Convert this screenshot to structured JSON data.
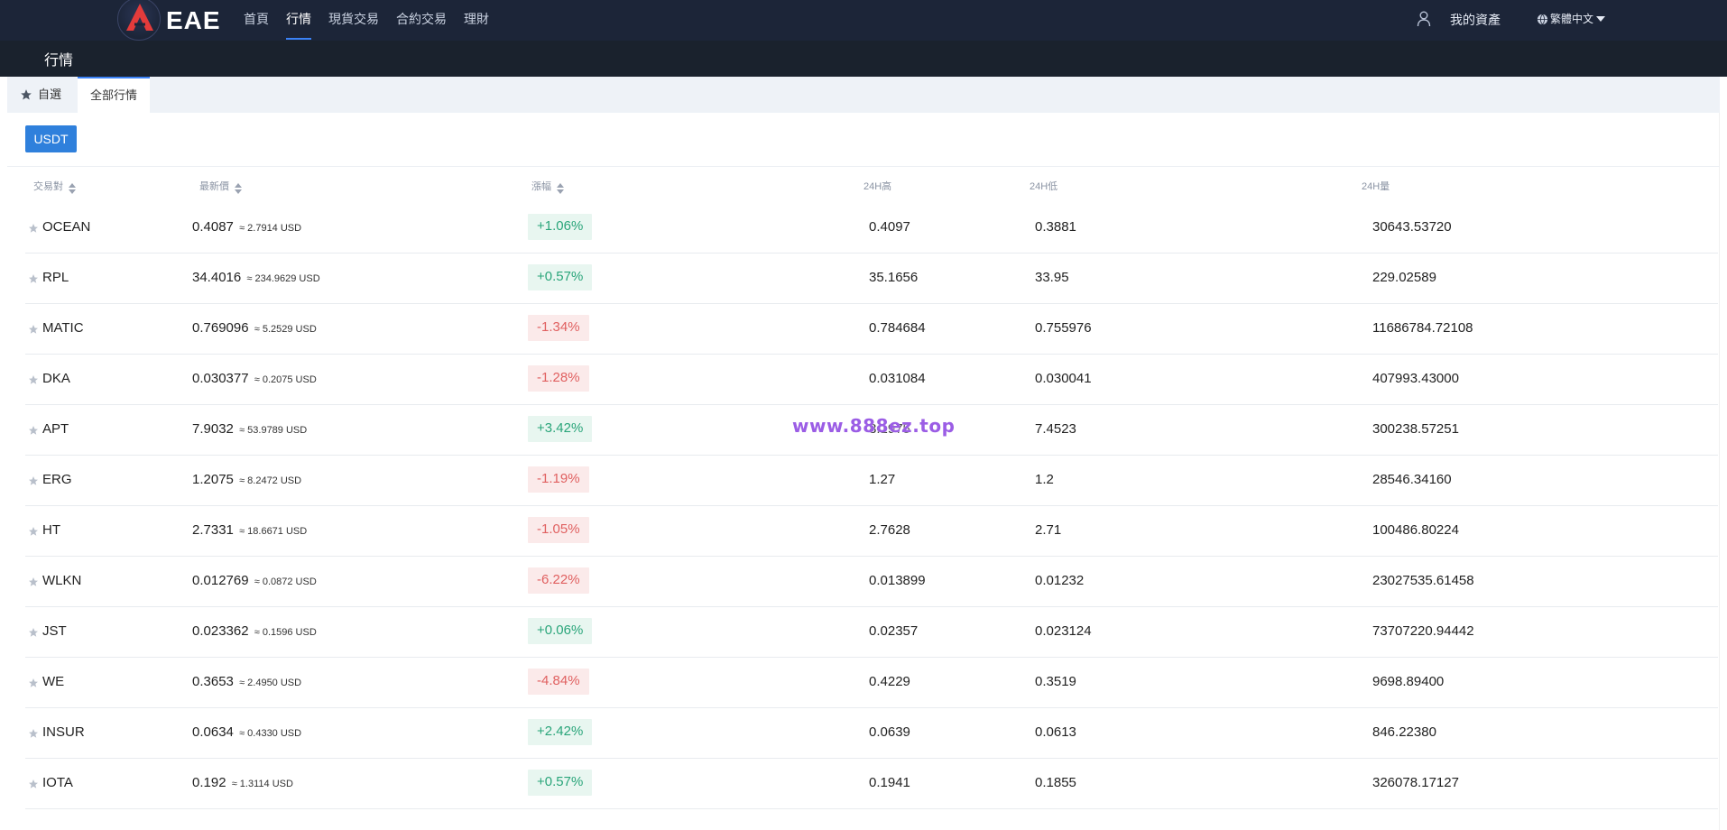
{
  "brand": {
    "name": "EAE"
  },
  "nav": {
    "items": [
      {
        "label": "首頁",
        "active": false
      },
      {
        "label": "行情",
        "active": true
      },
      {
        "label": "現貨交易",
        "active": false
      },
      {
        "label": "合約交易",
        "active": false
      },
      {
        "label": "理財",
        "active": false
      }
    ],
    "assets_label": "我的資產",
    "language": "繁體中文"
  },
  "subbar": {
    "title": "行情"
  },
  "tabs": {
    "favorites": "自選",
    "all": "全部行情",
    "active": "all"
  },
  "quote_currency": "USDT",
  "table": {
    "headers": {
      "pair": "交易對",
      "price": "最新價",
      "change": "漲幅",
      "high": "24H高",
      "low": "24H低",
      "volume": "24H量"
    },
    "rows": [
      {
        "pair": "OCEAN",
        "price": "0.4087",
        "usd": "≈ 2.7914 USD",
        "change": "+1.06%",
        "dir": "up",
        "high": "0.4097",
        "low": "0.3881",
        "volume": "30643.53720"
      },
      {
        "pair": "RPL",
        "price": "34.4016",
        "usd": "≈ 234.9629 USD",
        "change": "+0.57%",
        "dir": "up",
        "high": "35.1656",
        "low": "33.95",
        "volume": "229.02589"
      },
      {
        "pair": "MATIC",
        "price": "0.769096",
        "usd": "≈ 5.2529 USD",
        "change": "-1.34%",
        "dir": "down",
        "high": "0.784684",
        "low": "0.755976",
        "volume": "11686784.72108"
      },
      {
        "pair": "DKA",
        "price": "0.030377",
        "usd": "≈ 0.2075 USD",
        "change": "-1.28%",
        "dir": "down",
        "high": "0.031084",
        "low": "0.030041",
        "volume": "407993.43000"
      },
      {
        "pair": "APT",
        "price": "7.9032",
        "usd": "≈ 53.9789 USD",
        "change": "+3.42%",
        "dir": "up",
        "high": "8.1975",
        "low": "7.4523",
        "volume": "300238.57251"
      },
      {
        "pair": "ERG",
        "price": "1.2075",
        "usd": "≈ 8.2472 USD",
        "change": "-1.19%",
        "dir": "down",
        "high": "1.27",
        "low": "1.2",
        "volume": "28546.34160"
      },
      {
        "pair": "HT",
        "price": "2.7331",
        "usd": "≈ 18.6671 USD",
        "change": "-1.05%",
        "dir": "down",
        "high": "2.7628",
        "low": "2.71",
        "volume": "100486.80224"
      },
      {
        "pair": "WLKN",
        "price": "0.012769",
        "usd": "≈ 0.0872 USD",
        "change": "-6.22%",
        "dir": "down",
        "high": "0.013899",
        "low": "0.01232",
        "volume": "23027535.61458"
      },
      {
        "pair": "JST",
        "price": "0.023362",
        "usd": "≈ 0.1596 USD",
        "change": "+0.06%",
        "dir": "up",
        "high": "0.02357",
        "low": "0.023124",
        "volume": "73707220.94442"
      },
      {
        "pair": "WE",
        "price": "0.3653",
        "usd": "≈ 2.4950 USD",
        "change": "-4.84%",
        "dir": "down",
        "high": "0.4229",
        "low": "0.3519",
        "volume": "9698.89400"
      },
      {
        "pair": "INSUR",
        "price": "0.0634",
        "usd": "≈ 0.4330 USD",
        "change": "+2.42%",
        "dir": "up",
        "high": "0.0639",
        "low": "0.0613",
        "volume": "846.22380"
      },
      {
        "pair": "IOTA",
        "price": "0.192",
        "usd": "≈ 1.3114 USD",
        "change": "+0.57%",
        "dir": "up",
        "high": "0.1941",
        "low": "0.1855",
        "volume": "326078.17127"
      }
    ]
  },
  "watermark": "www.888ez.top",
  "colors": {
    "nav_bg": "#1c2538",
    "accent": "#2f80dc",
    "up": "#2aa57a",
    "down": "#e06060"
  }
}
